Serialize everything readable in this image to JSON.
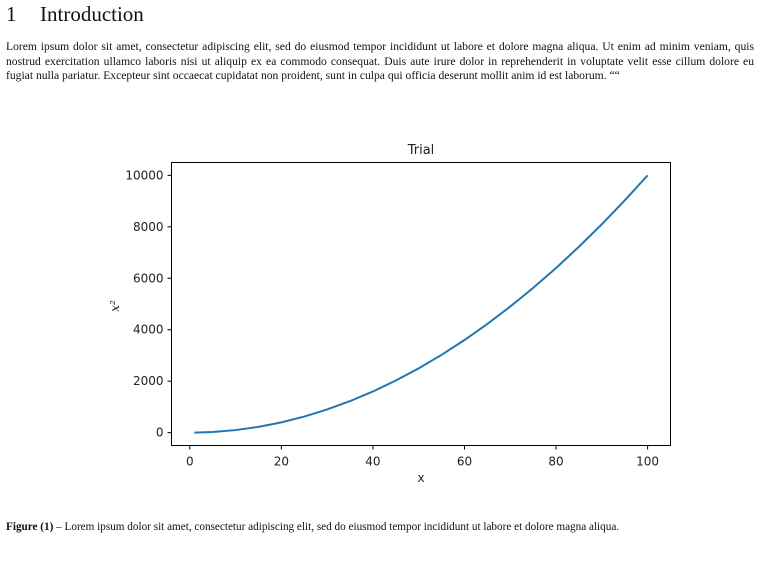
{
  "section": {
    "number": "1",
    "title": "Introduction"
  },
  "paragraph": "Lorem ipsum dolor sit amet, consectetur adipiscing elit, sed do eiusmod tempor incididunt ut labore et dolore magna aliqua. Ut enim ad minim veniam, quis nostrud exercitation ullamco laboris nisi ut aliquip ex ea commodo consequat. Duis aute irure dolor in reprehenderit in voluptate velit esse cillum dolore eu fugiat nulla pariatur. Excepteur sint occaecat cupidatat non proident, sunt in culpa qui officia deserunt mollit anim id est laborum. ““",
  "caption": {
    "label": "Figure (1)",
    "text": " – Lorem ipsum dolor sit amet, consectetur adipiscing elit, sed do eiusmod tempor incididunt ut labore et dolore magna aliqua."
  },
  "chart_data": {
    "type": "line",
    "title": "Trial",
    "xlabel": "x",
    "ylabel": "x²",
    "xlim": [
      -4,
      105
    ],
    "ylim": [
      -500,
      10500
    ],
    "xticks": [
      0,
      20,
      40,
      60,
      80,
      100
    ],
    "yticks": [
      0,
      2000,
      4000,
      6000,
      8000,
      10000
    ],
    "grid": false,
    "line_color": "#1f77b4",
    "series": [
      {
        "function": "y = x^2",
        "x": [
          1,
          5,
          10,
          15,
          20,
          25,
          30,
          35,
          40,
          45,
          50,
          55,
          60,
          65,
          70,
          75,
          80,
          85,
          90,
          95,
          100
        ],
        "y": [
          1,
          25,
          100,
          225,
          400,
          625,
          900,
          1225,
          1600,
          2025,
          2500,
          3025,
          3600,
          4225,
          4900,
          5625,
          6400,
          7225,
          8100,
          9025,
          10000
        ]
      }
    ]
  }
}
